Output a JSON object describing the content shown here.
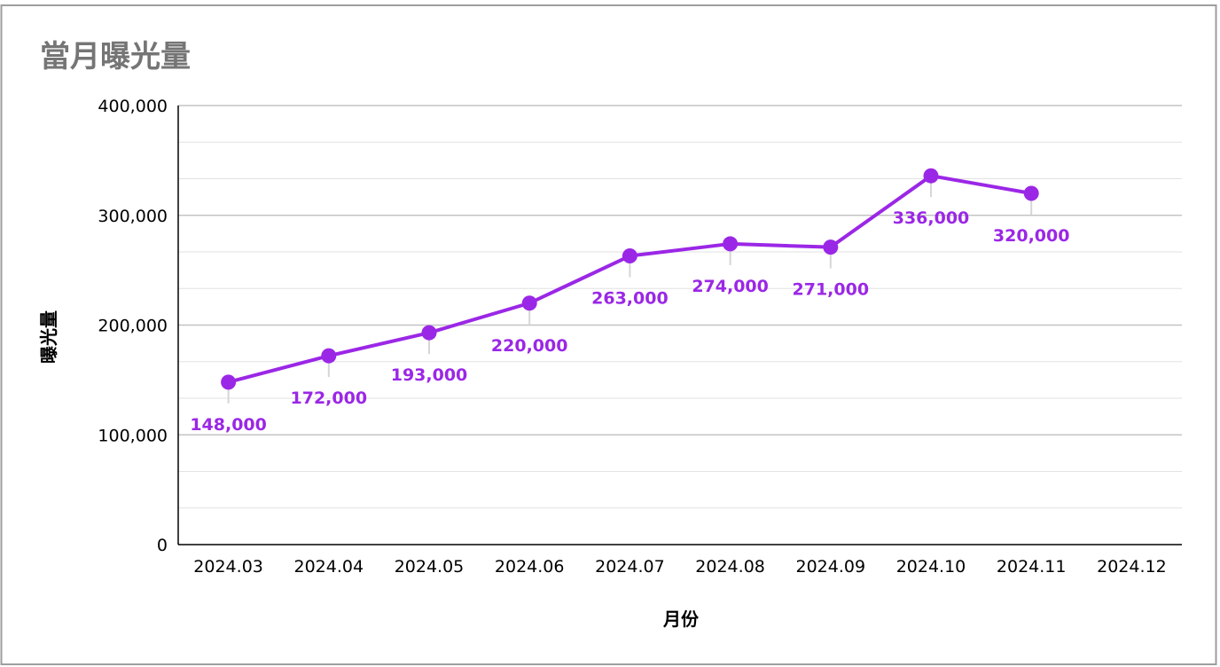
{
  "chart_data": {
    "type": "line",
    "title": "當月曝光量",
    "xlabel": "月份",
    "ylabel": "曝光量",
    "categories": [
      "2024.03",
      "2024.04",
      "2024.05",
      "2024.06",
      "2024.07",
      "2024.08",
      "2024.09",
      "2024.10",
      "2024.11",
      "2024.12"
    ],
    "series": [
      {
        "values": [
          148000,
          172000,
          193000,
          220000,
          263000,
          274000,
          271000,
          336000,
          320000,
          null
        ]
      }
    ],
    "data_labels": [
      "148,000",
      "172,000",
      "193,000",
      "220,000",
      "263,000",
      "274,000",
      "271,000",
      "336,000",
      "320,000"
    ],
    "ylim": [
      0,
      400000
    ],
    "yticks": [
      0,
      100000,
      200000,
      300000,
      400000
    ],
    "ytick_labels": [
      "0",
      "100,000",
      "200,000",
      "300,000",
      "400,000"
    ],
    "grid": true,
    "legend": "none",
    "colors": {
      "series": "#9b27e6",
      "title": "#757575",
      "major_grid": "#c4c4c4",
      "minor_grid": "#e2e2e2",
      "axis": "#000000"
    }
  }
}
